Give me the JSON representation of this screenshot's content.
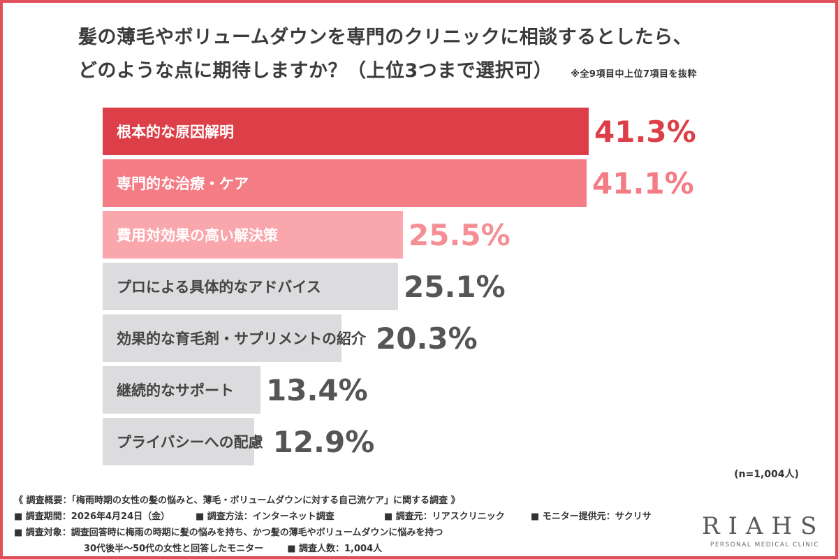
{
  "header": {
    "title_line1": "髪の薄毛やボリュームダウンを専門のクリニックに相談するとしたら、",
    "title_line2": "どのような点に期待しますか？（上位3つまで選択可）",
    "note": "※全9項目中上位7項目を抜粋"
  },
  "chart_data": {
    "type": "bar",
    "orientation": "horizontal",
    "categories": [
      "根本的な原因解明",
      "専門的な治療・ケア",
      "費用対効果の高い解決策",
      "プロによる具体的なアドバイス",
      "効果的な育毛剤・サプリメントの紹介",
      "継続的なサポート",
      "プライバシーへの配慮"
    ],
    "values": [
      41.3,
      41.1,
      25.5,
      25.1,
      20.3,
      13.4,
      12.9
    ],
    "value_labels": [
      "41.3%",
      "41.1%",
      "25.5%",
      "25.1%",
      "20.3%",
      "13.4%",
      "12.9%"
    ],
    "bar_colors": [
      "#dc3f48",
      "#f47c85",
      "#f9a6ac",
      "#dcdcdf",
      "#dcdcdf",
      "#dcdcdf",
      "#dcdcdf"
    ],
    "label_colors": [
      "#ffffff",
      "#ffffff",
      "#ffffff",
      "#444444",
      "#444444",
      "#444444",
      "#444444"
    ],
    "value_colors": [
      "#dc3f48",
      "#f47c85",
      "#f58f96",
      "#555555",
      "#555555",
      "#555555",
      "#555555"
    ],
    "xlim": [
      0,
      41.3
    ],
    "grid": false,
    "legend": "none"
  },
  "sample": {
    "n_label": "(n=1,004人)"
  },
  "survey": {
    "summary": "《 調査概要：「梅雨時期の女性の髪の悩みと、薄毛・ボリュームダウンに対する自己流ケア」に関する調査 》",
    "period": "■ 調査期間：2026年4月24日（金）",
    "method": "■ 調査方法：インターネット調査",
    "source": "■ 調査元：リアスクリニック",
    "monitor": "■ モニター提供元：サクリサ",
    "target": "■ 調査対象：調査回答時に梅雨の時期に髪の悩みを持ち、かつ髪の薄毛やボリュームダウンに悩みを持つ",
    "target2": "30代後半〜50代の女性と回答したモニター",
    "count": "■ 調査人数：1,004人"
  },
  "logo": {
    "word": "RIAHS",
    "sub": "PERSONAL MEDICAL CLINIC"
  }
}
